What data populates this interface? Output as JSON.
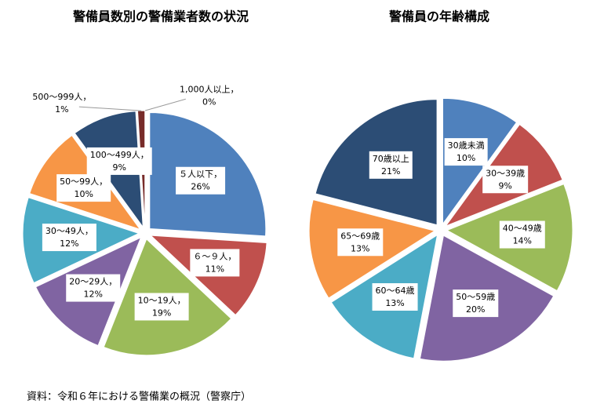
{
  "chart_data": [
    {
      "type": "pie",
      "title": "警備員数別の警備業者数の状況",
      "separator": "，",
      "categories": [
        "５人以下",
        "６～９人",
        "10～19人",
        "20～29人",
        "30～49人",
        "50～99人",
        "100～499人",
        "500～999人",
        "1,000人以上"
      ],
      "values": [
        26,
        11,
        19,
        12,
        12,
        10,
        9,
        1,
        0
      ],
      "value_labels": [
        "26%",
        "11%",
        "19%",
        "12%",
        "12%",
        "10%",
        "9%",
        "1%",
        "0%"
      ],
      "colors": [
        "#4f81bd",
        "#c0504d",
        "#9bbb59",
        "#8064a2",
        "#4bacc6",
        "#f79646",
        "#2c4d75",
        "#772c2a",
        "#5f7530"
      ]
    },
    {
      "type": "pie",
      "title": "警備員の年齢構成",
      "categories": [
        "30歳未満",
        "30～39歳",
        "40～49歳",
        "50～59歳",
        "60～64歳",
        "65～69歳",
        "70歳以上"
      ],
      "values": [
        10,
        9,
        14,
        20,
        13,
        13,
        21
      ],
      "value_labels": [
        "10%",
        "9%",
        "14%",
        "20%",
        "13%",
        "13%",
        "21%"
      ],
      "colors": [
        "#4f81bd",
        "#c0504d",
        "#9bbb59",
        "#8064a2",
        "#4bacc6",
        "#f79646",
        "#2c4d75"
      ]
    }
  ],
  "source": "資料：令和６年における警備業の概況（警察庁）"
}
